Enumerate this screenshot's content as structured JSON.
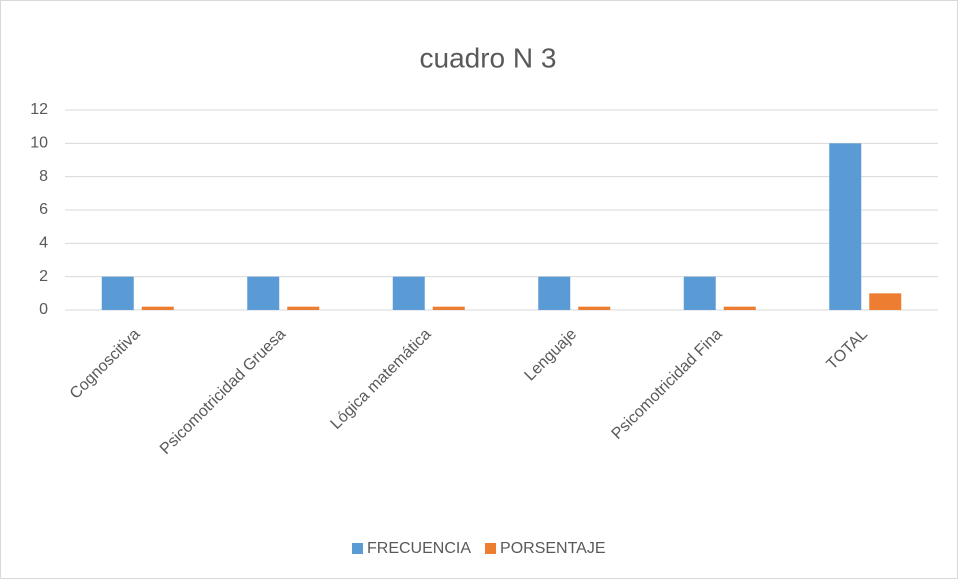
{
  "chart_data": {
    "type": "bar",
    "title": "cuadro N 3",
    "categories": [
      "Cognoscitiva",
      "Psicomotricidad Gruesa",
      "Lógica matemática",
      "Lenguaje",
      "Psicomotricidad Fina",
      "TOTAL"
    ],
    "series": [
      {
        "name": "FRECUENCIA",
        "color": "#5b9bd5",
        "values": [
          2,
          2,
          2,
          2,
          2,
          10
        ]
      },
      {
        "name": "PORSENTAJE",
        "color": "#ed7d31",
        "values": [
          0.2,
          0.2,
          0.2,
          0.2,
          0.2,
          1
        ]
      }
    ],
    "ylim": [
      0,
      12
    ],
    "yticks": [
      0,
      2,
      4,
      6,
      8,
      10,
      12
    ],
    "grid": true,
    "legend": "bottom"
  }
}
